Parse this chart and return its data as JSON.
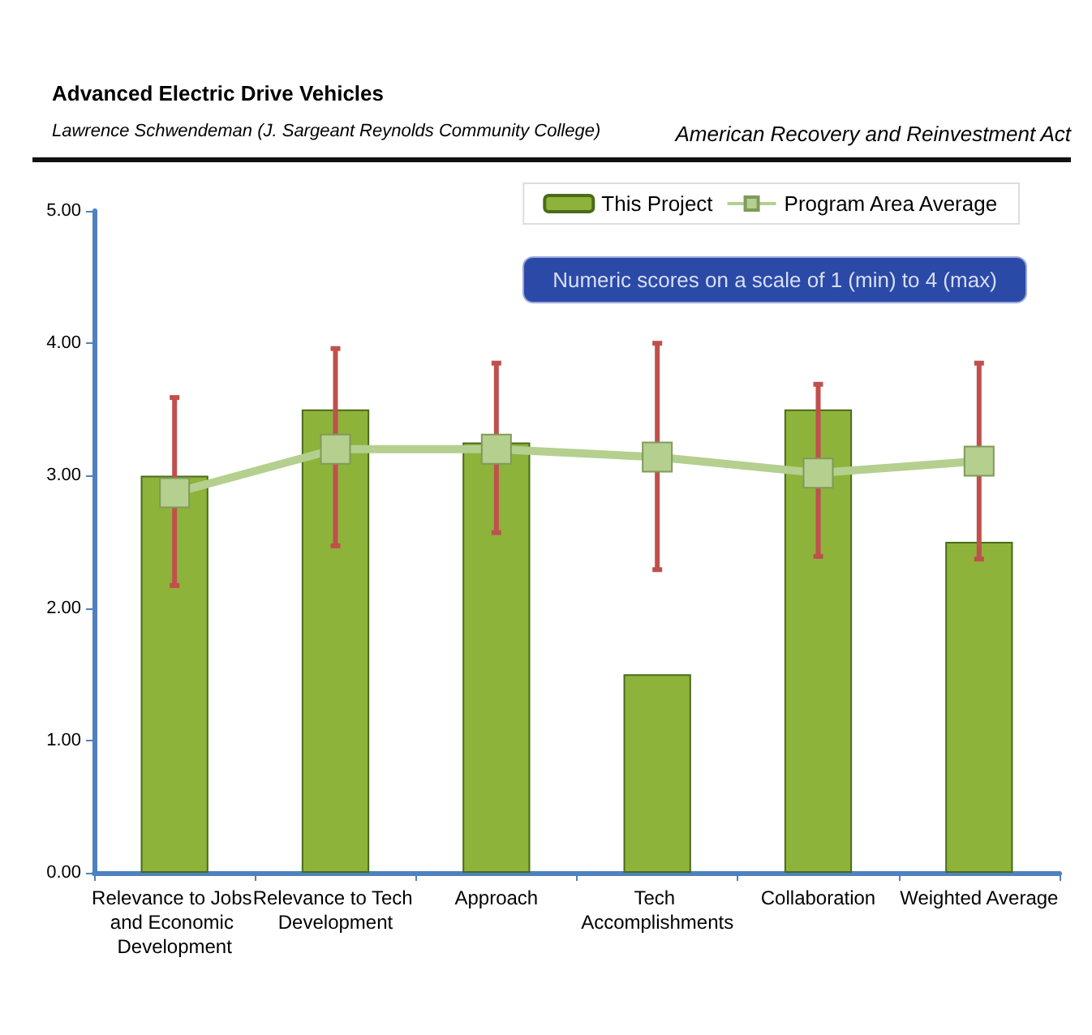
{
  "chart_data": {
    "type": "bar",
    "title": "Advanced Electric Drive Vehicles",
    "subtitle": "Lawrence Schwendeman  (J. Sargeant Reynolds  Community  College)",
    "annotations": [
      "American Recovery and Reinvestment Act",
      "Numeric scores on a scale of 1 (min) to 4 (max)"
    ],
    "categories": [
      "Relevance to Jobs and Economic Development",
      "Relevance to Tech Development",
      "Approach",
      "Tech Accomplishments",
      "Collaboration",
      "Weighted Average"
    ],
    "series": [
      {
        "name": "This Project",
        "color": "#8db33a",
        "values": [
          3.0,
          3.5,
          3.25,
          1.5,
          3.5,
          2.5
        ]
      },
      {
        "name": "Program Area Average",
        "type": "line",
        "color": "#b5cf8f",
        "marker": "square",
        "values": [
          2.87,
          3.2,
          3.2,
          3.14,
          3.02,
          3.11
        ],
        "errors": [
          [
            2.17,
            3.59
          ],
          [
            2.47,
            3.96
          ],
          [
            2.57,
            3.85
          ],
          [
            2.29,
            4.0
          ],
          [
            2.39,
            3.69
          ],
          [
            2.37,
            3.85
          ]
        ]
      }
    ],
    "ylim": [
      0,
      5
    ],
    "yticks": [
      {
        "value": 0,
        "label": "0.00"
      },
      {
        "value": 1,
        "label": "1.00"
      },
      {
        "value": 2,
        "label": "2.00"
      },
      {
        "value": 3,
        "label": "3.00"
      },
      {
        "value": 4,
        "label": "4.00"
      },
      {
        "value": 5,
        "label": "5.00"
      }
    ],
    "legend": "top right",
    "grid": false
  }
}
